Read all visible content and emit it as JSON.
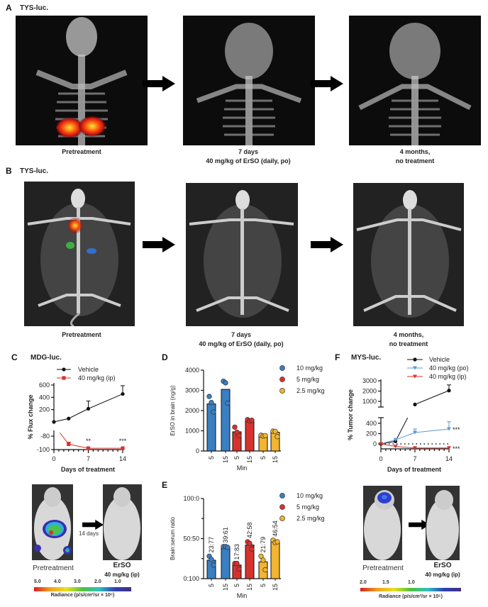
{
  "panelA": {
    "label": "A",
    "title": "TYS-luc.",
    "captions": [
      [
        "Pretreatment"
      ],
      [
        "7 days",
        "40 mg/kg of ErSO (daily, po)"
      ],
      [
        "4 months,",
        "no treatment"
      ]
    ]
  },
  "panelB": {
    "label": "B",
    "title": "TYS-luc.",
    "captions": [
      [
        "Pretreatment"
      ],
      [
        "7 days",
        "40 mg/kg of ErSO (daily, po)"
      ],
      [
        "4 months,",
        "no treatment"
      ]
    ]
  },
  "panelC": {
    "label": "C",
    "title": "MDG-luc.",
    "images": {
      "pre": "Pretreatment",
      "interval": "14 days",
      "post": "ErSO",
      "post_dose": "40 mg/kg (ip)"
    },
    "colorbar": {
      "ticks": [
        "5.0",
        "4.0",
        "3.0",
        "2.0",
        "1.0"
      ],
      "label": "Radiance (p/s/cm²/sr × 10⁶)"
    }
  },
  "panelD": {
    "label": "D"
  },
  "panelE": {
    "label": "E"
  },
  "panelF": {
    "label": "F",
    "title": "MYS-luc.",
    "images": {
      "pre": "Pretreatment",
      "post": "ErSO",
      "post_dose": "40 mg/kg (ip)"
    },
    "colorbar": {
      "ticks": [
        "2.0",
        "1.5",
        "1.0"
      ],
      "label": "Radiance (p/s/cm²/sr × 10⁵)"
    }
  },
  "colors": {
    "vehicle": "#111111",
    "red": "#d8322e",
    "blue": "#3a7fc1",
    "yellow": "#f2b431",
    "po": "#5a9bd5"
  },
  "chart_data": [
    {
      "id": "C",
      "type": "line",
      "xlabel": "Days of treatment",
      "ylabel": "% Flux change",
      "xticks": [
        0,
        7,
        14
      ],
      "yticks_upper": [
        200,
        400,
        600
      ],
      "yticks_lower": [
        -80,
        -100
      ],
      "series": [
        {
          "name": "Vehicle",
          "x": [
            0,
            3,
            7,
            14
          ],
          "y": [
            0,
            55,
            215,
            455
          ],
          "err": [
            0,
            0,
            125,
            135
          ],
          "marker": "circle"
        },
        {
          "name": "40 mg/kg (ip)",
          "x": [
            0,
            3,
            7,
            14
          ],
          "y": [
            0,
            -92,
            -98,
            -98
          ],
          "err": [
            0,
            3,
            0,
            0
          ],
          "marker": "square"
        }
      ],
      "annotations": [
        {
          "x": 7,
          "text": "**"
        },
        {
          "x": 14,
          "text": "***"
        }
      ]
    },
    {
      "id": "D",
      "type": "bar",
      "xlabel": "Min",
      "ylabel": "ErSO in brain (ng/g)",
      "ylim": [
        0,
        4000
      ],
      "yticks": [
        0,
        1000,
        2000,
        3000,
        4000
      ],
      "categories": [
        "5",
        "15",
        "5",
        "15",
        "5",
        "15"
      ],
      "groups": [
        "10 mg/kg",
        "10 mg/kg",
        "5 mg/kg",
        "5 mg/kg",
        "2.5 mg/kg",
        "2.5 mg/kg"
      ],
      "values": [
        2330,
        3050,
        950,
        1500,
        740,
        930
      ],
      "points": [
        [
          2700,
          2400,
          1930
        ],
        [
          3450,
          3370,
          2370
        ],
        [
          1180,
          930,
          760
        ],
        [
          1550,
          1490,
          1520
        ],
        [
          780,
          740,
          760
        ],
        [
          980,
          970,
          710
        ]
      ],
      "legend": [
        "10 mg/kg",
        "5 mg/kg",
        "2.5 mg/kg"
      ]
    },
    {
      "id": "E",
      "type": "bar",
      "xlabel": "Min",
      "ylabel": "Brain:serum ratio",
      "ylim": [
        0,
        100
      ],
      "yticks": [
        0,
        50,
        100
      ],
      "ytick_labels": [
        "0:100",
        "50:50",
        "100:0"
      ],
      "categories": [
        "5",
        "15",
        "5",
        "15",
        "5",
        "15"
      ],
      "values": [
        23,
        39,
        17,
        42,
        21,
        46
      ],
      "labels": [
        "23:77",
        "39:61",
        "17:83",
        "42:58",
        "21:79",
        "46:54"
      ],
      "points": [
        [
          28,
          24,
          17
        ],
        [
          40,
          40,
          39
        ],
        [
          19,
          19,
          12
        ],
        [
          46,
          44,
          37
        ],
        [
          28,
          23,
          11
        ],
        [
          48,
          45,
          46
        ]
      ],
      "legend": [
        "10 mg/kg",
        "5 mg/kg",
        "2.5 mg/kg"
      ]
    },
    {
      "id": "F",
      "type": "line",
      "xlabel": "Days of treatment",
      "ylabel": "% Tumor change",
      "xticks": [
        0,
        7,
        14
      ],
      "yticks_upper": [
        1000,
        2000,
        3000
      ],
      "yticks_lower": [
        0,
        200,
        400
      ],
      "series": [
        {
          "name": "Vehicle",
          "x": [
            0,
            3,
            7,
            14
          ],
          "y": [
            0,
            50,
            700,
            2050
          ],
          "err": [
            0,
            0,
            0,
            550
          ],
          "marker": "circle"
        },
        {
          "name": "40 mg/kg (po)",
          "x": [
            0,
            3,
            7,
            14
          ],
          "y": [
            0,
            80,
            220,
            290
          ],
          "err": [
            0,
            0,
            70,
            140
          ],
          "marker": "triangle-down"
        },
        {
          "name": "40 mg/kg (ip)",
          "x": [
            0,
            3,
            7,
            14
          ],
          "y": [
            0,
            -50,
            -80,
            -80
          ],
          "err": [
            0,
            0,
            0,
            0
          ],
          "marker": "triangle-down"
        }
      ],
      "annotations": [
        {
          "series": "40 mg/kg (po)",
          "text": "***"
        },
        {
          "series": "40 mg/kg (ip)",
          "text": "***"
        }
      ]
    }
  ]
}
